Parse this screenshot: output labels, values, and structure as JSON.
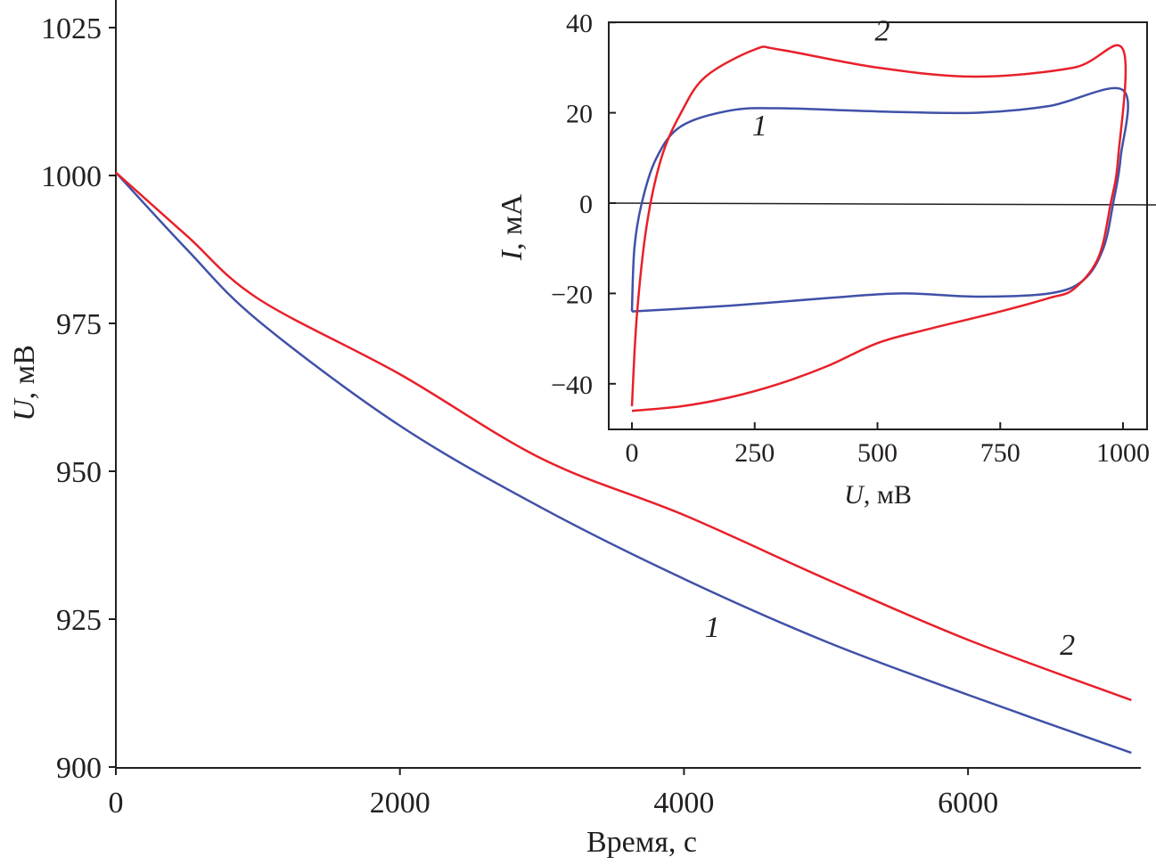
{
  "chart_data": [
    {
      "type": "line",
      "xlabel": "Время, с",
      "ylabel_var": "U",
      "ylabel_unit": ", мВ",
      "xlim": [
        0,
        7200
      ],
      "ylim": [
        900,
        1030
      ],
      "xticks": [
        0,
        2000,
        4000,
        6000
      ],
      "yticks": [
        900,
        925,
        950,
        975,
        1000,
        1025
      ],
      "grid": false,
      "series": [
        {
          "name": "1",
          "color": "#3f51a8",
          "x": [
            0,
            500,
            1000,
            2000,
            3000,
            4000,
            5000,
            6000,
            7150
          ],
          "y": [
            1000.5,
            987.5,
            975.5,
            957.7,
            943.8,
            931.8,
            921.2,
            912.2,
            902.4
          ]
        },
        {
          "name": "2",
          "color": "#e8202a",
          "x": [
            0,
            500,
            1000,
            2000,
            3000,
            4000,
            5000,
            6000,
            7150
          ],
          "y": [
            1000.5,
            989.8,
            979.2,
            966.4,
            952.1,
            942.6,
            931.8,
            921.5,
            911.3
          ]
        }
      ],
      "annotations": [
        {
          "text": "1",
          "x": 4200,
          "y": 922
        },
        {
          "text": "2",
          "x": 6700,
          "y": 919
        }
      ]
    },
    {
      "type": "line",
      "title": "inset",
      "xlabel_var": "U",
      "xlabel_unit": ", мВ",
      "ylabel_var": "I",
      "ylabel_unit": ", мА",
      "xlim": [
        -45,
        1045
      ],
      "ylim": [
        -46,
        40
      ],
      "xticks": [
        0,
        250,
        500,
        750,
        1000
      ],
      "yticks": [
        -40,
        -20,
        0,
        20,
        40
      ],
      "series": [
        {
          "name": "1",
          "color": "#3f51a8",
          "x": [
            0,
            5,
            20,
            50,
            100,
            200,
            300,
            500,
            700,
            850,
            1000,
            995,
            980,
            960,
            920,
            850,
            700,
            550,
            400,
            200,
            0
          ],
          "y": [
            -24,
            -10,
            0,
            10,
            17,
            20.5,
            21,
            20.3,
            20,
            21.5,
            25,
            10,
            0,
            -10,
            -17,
            -20,
            -20.7,
            -20,
            -21,
            -22.7,
            -24
          ]
        },
        {
          "name": "2",
          "color": "#e8202a",
          "x": [
            0,
            10,
            30,
            60,
            100,
            150,
            250,
            300,
            500,
            700,
            900,
            1000,
            990,
            975,
            950,
            900,
            850,
            750,
            600,
            500,
            400,
            300,
            200,
            100,
            0
          ],
          "y": [
            -45,
            -25,
            -5,
            10,
            20,
            28,
            34,
            34,
            30,
            28,
            30,
            34,
            10,
            0,
            -12,
            -19,
            -21,
            -24,
            -28,
            -31,
            -36,
            -40,
            -43,
            -45,
            -46
          ]
        }
      ],
      "annotations": [
        {
          "text": "1",
          "x": 260,
          "y": 15
        },
        {
          "text": "2",
          "x": 510,
          "y": 36
        }
      ]
    }
  ]
}
